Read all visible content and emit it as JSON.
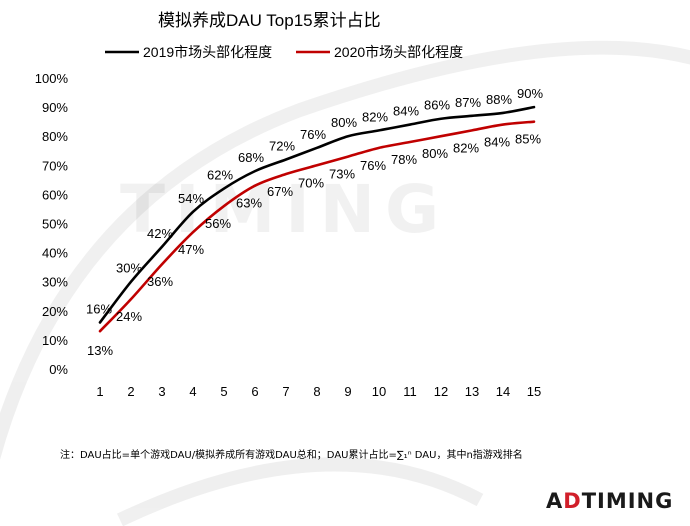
{
  "chart_data": {
    "type": "line",
    "title": "模拟养成DAU Top15累计占比",
    "xlabel": "",
    "ylabel": "",
    "x": [
      1,
      2,
      3,
      4,
      5,
      6,
      7,
      8,
      9,
      10,
      11,
      12,
      13,
      14,
      15
    ],
    "ylim": [
      0,
      100
    ],
    "yticks": [
      "0%",
      "10%",
      "20%",
      "30%",
      "40%",
      "50%",
      "60%",
      "70%",
      "80%",
      "90%",
      "100%"
    ],
    "legend_position": "top",
    "grid": false,
    "series": [
      {
        "name": "2019市场头部化程度",
        "color": "#000000",
        "values": [
          16,
          30,
          42,
          54,
          62,
          68,
          72,
          76,
          80,
          82,
          84,
          86,
          87,
          88,
          90
        ],
        "labels": [
          "16%",
          "30%",
          "42%",
          "54%",
          "62%",
          "68%",
          "72%",
          "76%",
          "80%",
          "82%",
          "84%",
          "86%",
          "87%",
          "88%",
          "90%"
        ]
      },
      {
        "name": "2020市场头部化程度",
        "color": "#c00000",
        "values": [
          13,
          24,
          36,
          47,
          56,
          63,
          67,
          70,
          73,
          76,
          78,
          80,
          82,
          84,
          85
        ],
        "labels": [
          "13%",
          "24%",
          "36%",
          "47%",
          "56%",
          "63%",
          "67%",
          "70%",
          "73%",
          "76%",
          "78%",
          "80%",
          "82%",
          "84%",
          "85%"
        ]
      }
    ]
  },
  "footnote": "注：DAU占比=单个游戏DAU/模拟养成所有游戏DAU总和；DAU累计占比=∑₁ⁿ DAU，其中n指游戏排名",
  "brand": {
    "prefix": "A",
    "mark": "D",
    "rest": "TIMING"
  }
}
